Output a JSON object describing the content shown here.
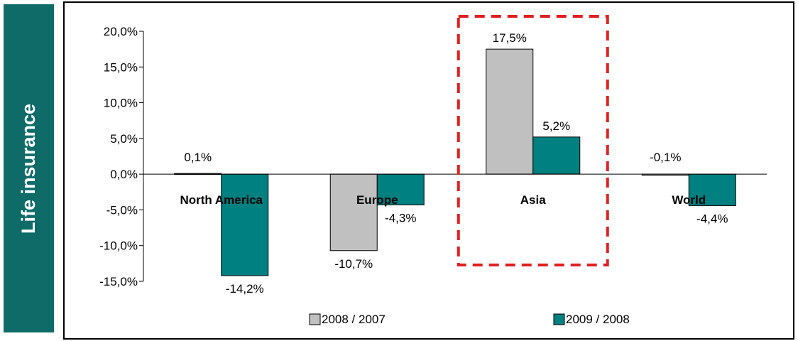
{
  "side_label": "Life insurance",
  "chart_data": {
    "type": "bar",
    "categories": [
      "North America",
      "Europe",
      "Asia",
      "World"
    ],
    "series": [
      {
        "name": "2008 / 2007",
        "values": [
          0.1,
          -10.7,
          17.5,
          -0.1
        ],
        "labels": [
          "0,1%",
          "-10,7%",
          "17,5%",
          "-0,1%"
        ],
        "color": "#c0c0c0"
      },
      {
        "name": "2009 / 2008",
        "values": [
          -14.2,
          -4.3,
          5.2,
          -4.4
        ],
        "labels": [
          "-14,2%",
          "-4,3%",
          "5,2%",
          "-4,4%"
        ],
        "color": "#008080"
      }
    ],
    "ylim": [
      -15,
      20
    ],
    "yticks": [
      20,
      15,
      10,
      5,
      0,
      -5,
      -10,
      -15
    ],
    "ytick_labels": [
      "20,0%",
      "15,0%",
      "10,0%",
      "5,0%",
      "0,0%",
      "-5,0%",
      "-10,0%",
      "-15,0%"
    ],
    "highlight_category": "Asia",
    "highlight_color": "#e02020",
    "legend_position": "bottom"
  }
}
